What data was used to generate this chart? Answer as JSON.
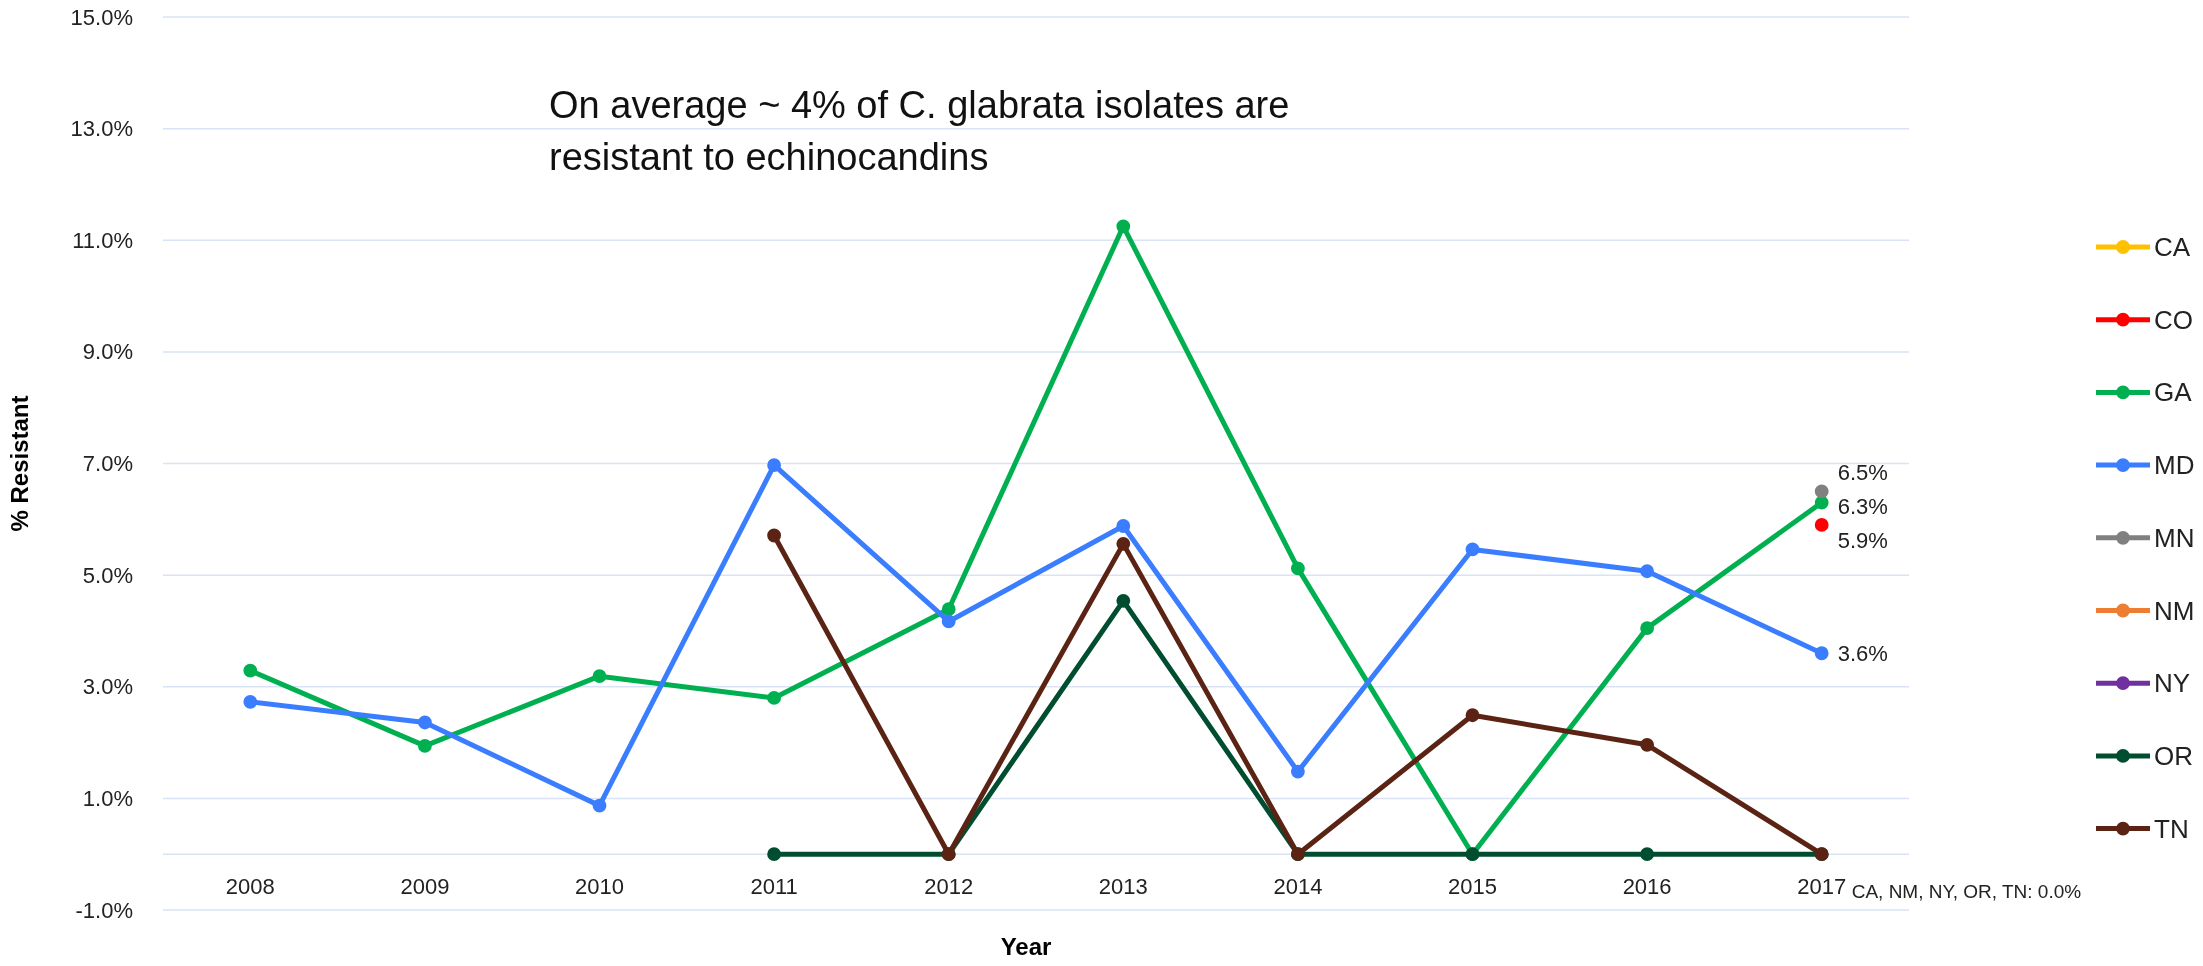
{
  "chart_data": {
    "type": "line",
    "xlabel": "Year",
    "ylabel": "% Resistant",
    "categories": [
      "2008",
      "2009",
      "2010",
      "2011",
      "2012",
      "2013",
      "2014",
      "2015",
      "2016",
      "2017"
    ],
    "ylim": [
      -1,
      15
    ],
    "yticks": [
      {
        "value": -1,
        "label": "-1.0%"
      },
      {
        "value": 1,
        "label": "1.0%"
      },
      {
        "value": 3,
        "label": "3.0%"
      },
      {
        "value": 5,
        "label": "5.0%"
      },
      {
        "value": 7,
        "label": "7.0%"
      },
      {
        "value": 9,
        "label": "9.0%"
      },
      {
        "value": 11,
        "label": "11.0%"
      },
      {
        "value": 13,
        "label": "13.0%"
      },
      {
        "value": 15,
        "label": "15.0%"
      }
    ],
    "grid": "y",
    "legend": "right",
    "marker": "circle",
    "series": [
      {
        "name": "CA",
        "color": "#ffc000",
        "values": [
          null,
          null,
          null,
          null,
          null,
          null,
          null,
          null,
          null,
          null
        ]
      },
      {
        "name": "CO",
        "color": "#ff0000",
        "values": [
          null,
          null,
          null,
          null,
          null,
          null,
          null,
          null,
          null,
          5.9
        ],
        "value_labels": [
          null,
          null,
          null,
          null,
          null,
          null,
          null,
          null,
          null,
          "5.9%"
        ]
      },
      {
        "name": "GA",
        "color": "#00b050",
        "values": [
          3.29,
          1.94,
          3.19,
          2.8,
          4.39,
          11.25,
          5.12,
          0,
          4.05,
          6.3
        ],
        "value_labels": [
          null,
          null,
          null,
          null,
          null,
          null,
          null,
          null,
          null,
          "6.3%"
        ]
      },
      {
        "name": "MD",
        "color": "#3a7dff",
        "values": [
          2.73,
          2.36,
          0.87,
          6.97,
          4.17,
          5.88,
          1.48,
          5.46,
          5.07,
          3.6
        ],
        "value_labels": [
          null,
          null,
          null,
          null,
          null,
          null,
          null,
          null,
          null,
          "3.6%"
        ]
      },
      {
        "name": "MN",
        "color": "#808080",
        "values": [
          null,
          null,
          null,
          null,
          null,
          null,
          null,
          null,
          null,
          6.5
        ],
        "value_labels": [
          null,
          null,
          null,
          null,
          null,
          null,
          null,
          null,
          null,
          "6.5%"
        ]
      },
      {
        "name": "NM",
        "color": "#ed7d31",
        "values": [
          null,
          null,
          null,
          null,
          null,
          null,
          null,
          null,
          null,
          null
        ]
      },
      {
        "name": "NY",
        "color": "#7030a0",
        "values": [
          null,
          null,
          null,
          null,
          null,
          null,
          null,
          null,
          null,
          null
        ]
      },
      {
        "name": "OR",
        "color": "#004d30",
        "values": [
          null,
          null,
          null,
          0,
          0,
          4.54,
          0,
          0,
          0,
          0
        ]
      },
      {
        "name": "TN",
        "color": "#5a2314",
        "values": [
          null,
          null,
          null,
          5.71,
          0,
          5.56,
          0,
          2.49,
          1.96,
          0
        ]
      }
    ],
    "annotations": [
      "On average ~ 4% of C. glabrata isolates are resistant to echinocandins",
      {
        "text": "CA, NM, NY, OR, TN: 0.0%",
        "x": "2017",
        "y": 0
      }
    ]
  }
}
